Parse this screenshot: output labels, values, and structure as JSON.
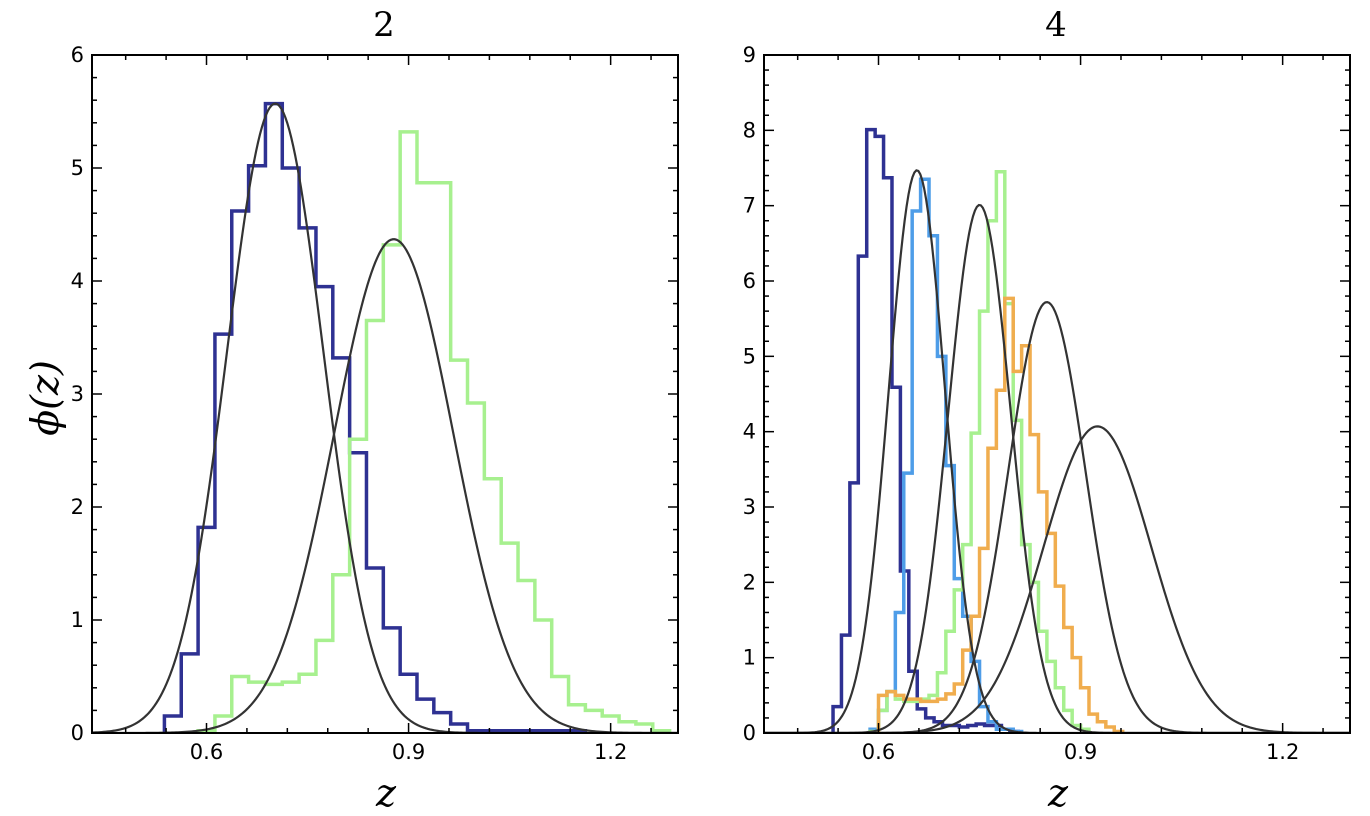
{
  "figure": {
    "ylabel": "ϕ(z)"
  },
  "chart_data": [
    {
      "type": "histogram",
      "title": "2",
      "xlabel": "z",
      "ylabel": "ϕ(z)",
      "xlim": [
        0.43,
        1.3
      ],
      "ylim": [
        0,
        6
      ],
      "xticks": [
        0.6,
        0.9,
        1.2
      ],
      "xtick_labels": [
        "0.6",
        "0.9",
        "1.2"
      ],
      "yticks": [
        0,
        1,
        2,
        3,
        4,
        5,
        6
      ],
      "ytick_labels": [
        "0",
        "1",
        "2",
        "3",
        "4",
        "5",
        "6"
      ],
      "grid": false,
      "bin_width": 0.025,
      "histograms": [
        {
          "color": "#2e3192",
          "start": 0.5375,
          "values": [
            0.15,
            0.7,
            1.82,
            3.53,
            4.62,
            5.02,
            5.57,
            5.0,
            4.47,
            3.95,
            3.32,
            2.48,
            1.46,
            0.93,
            0.52,
            0.3,
            0.18,
            0.08,
            0.02,
            0.02,
            0.02,
            0.02,
            0.02,
            0.02,
            0.02
          ]
        },
        {
          "color": "#a7f08f",
          "start": 0.5875,
          "values": [
            0.02,
            0.15,
            0.5,
            0.45,
            0.43,
            0.45,
            0.52,
            0.82,
            1.4,
            2.6,
            3.65,
            4.32,
            5.32,
            4.87,
            4.87,
            3.3,
            2.92,
            2.25,
            1.68,
            1.35,
            1.0,
            0.5,
            0.25,
            0.2,
            0.15,
            0.1,
            0.08,
            0.02
          ]
        }
      ],
      "fits": [
        {
          "mean": 0.702,
          "sigma": 0.0715,
          "peak": 5.57
        },
        {
          "mean": 0.878,
          "sigma": 0.0885,
          "peak": 4.37
        }
      ]
    },
    {
      "type": "histogram",
      "title": "4",
      "xlabel": "z",
      "ylabel": "",
      "xlim": [
        0.43,
        1.3
      ],
      "ylim": [
        0,
        9
      ],
      "xticks": [
        0.6,
        0.9,
        1.2
      ],
      "xtick_labels": [
        "0.6",
        "0.9",
        "1.2"
      ],
      "yticks": [
        0,
        1,
        2,
        3,
        4,
        5,
        6,
        7,
        8,
        9
      ],
      "ytick_labels": [
        "0",
        "1",
        "2",
        "3",
        "4",
        "5",
        "6",
        "7",
        "8",
        "9"
      ],
      "grid": false,
      "bin_width": 0.0125,
      "histograms": [
        {
          "color": "#2e3192",
          "start": 0.5325,
          "values": [
            0.35,
            1.3,
            3.32,
            6.33,
            8.01,
            7.92,
            7.37,
            4.59,
            2.15,
            0.82,
            0.32,
            0.2,
            0.15,
            0.1,
            0.1,
            0.08,
            0.1,
            0.12,
            0.1,
            0.1,
            0.05,
            0.02
          ]
        },
        {
          "color": "#4e9de8",
          "start": 0.5875,
          "values": [
            0.05,
            0.3,
            0.55,
            1.6,
            3.45,
            6.93,
            7.35,
            6.6,
            5.0,
            3.55,
            2.05,
            1.55,
            0.95,
            0.35,
            0.15,
            0.05,
            0.05,
            0.02
          ]
        },
        {
          "color": "#a7f08f",
          "start": 0.5875,
          "values": [
            0.02,
            0.3,
            0.55,
            0.45,
            0.42,
            0.42,
            0.45,
            0.5,
            0.8,
            1.35,
            1.9,
            2.5,
            3.98,
            5.6,
            6.8,
            7.45,
            5.7,
            4.15,
            2.5,
            2.0,
            1.35,
            0.95,
            0.6,
            0.3,
            0.1,
            0.05
          ]
        },
        {
          "color": "#f0ad4e",
          "start": 0.6,
          "values": [
            0.5,
            0.55,
            0.5,
            0.45,
            0.45,
            0.42,
            0.42,
            0.45,
            0.52,
            0.65,
            1.1,
            1.55,
            2.45,
            3.78,
            4.55,
            5.77,
            4.8,
            5.14,
            3.96,
            3.2,
            2.65,
            1.95,
            1.4,
            1.0,
            0.6,
            0.25,
            0.15,
            0.08,
            0.02
          ]
        }
      ],
      "fits": [
        {
          "mean": 0.657,
          "sigma": 0.042,
          "peak": 7.47
        },
        {
          "mean": 0.75,
          "sigma": 0.0465,
          "peak": 7.01
        },
        {
          "mean": 0.85,
          "sigma": 0.0575,
          "peak": 5.72
        },
        {
          "mean": 0.925,
          "sigma": 0.08,
          "peak": 4.07
        }
      ]
    }
  ]
}
